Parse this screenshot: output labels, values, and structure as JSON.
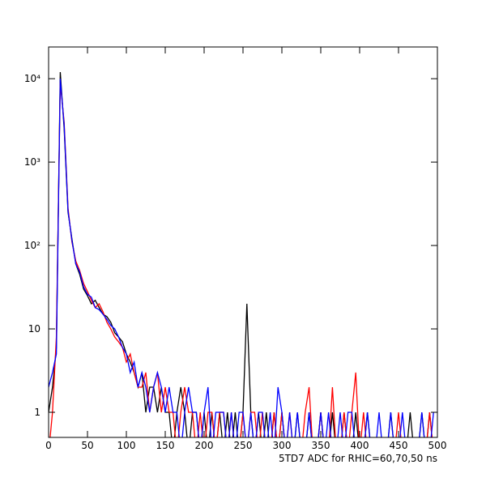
{
  "chart_data": {
    "type": "line",
    "xlabel": "5TD7 ADC for RHIC=60,70,50 ns",
    "xlim": [
      0,
      500
    ],
    "xticks": [
      0,
      50,
      100,
      150,
      200,
      250,
      300,
      350,
      400,
      450,
      500
    ],
    "ylim": [
      0.5,
      24000
    ],
    "log_y": true,
    "yticks": [
      1,
      10,
      {
        "value": 100,
        "label": "10²"
      },
      {
        "value": 1000,
        "label": "10³"
      },
      {
        "value": 10000,
        "label": "10⁴"
      }
    ],
    "x": [
      0,
      5,
      10,
      15,
      20,
      25,
      30,
      35,
      40,
      45,
      50,
      55,
      60,
      65,
      70,
      75,
      80,
      85,
      90,
      95,
      100,
      105,
      110,
      115,
      120,
      125,
      130,
      135,
      140,
      145,
      150,
      155,
      160,
      165,
      170,
      175,
      180,
      185,
      190,
      195,
      200,
      205,
      210,
      215,
      220,
      225,
      230,
      235,
      240,
      245,
      250,
      255,
      260,
      265,
      270,
      275,
      280,
      285,
      290,
      295,
      300,
      305,
      310,
      315,
      320,
      325,
      330,
      335,
      340,
      345,
      350,
      355,
      360,
      365,
      370,
      375,
      380,
      385,
      390,
      395,
      400,
      405,
      410,
      415,
      420,
      425,
      430,
      435,
      440,
      445,
      450,
      455,
      460,
      465,
      470,
      475,
      480,
      485,
      490,
      495
    ],
    "series": [
      {
        "color": "#000000",
        "values": [
          1,
          2,
          6,
          12000,
          2500,
          250,
          120,
          60,
          45,
          30,
          25,
          20,
          22,
          18,
          15,
          14,
          12,
          9,
          8,
          7,
          5,
          4,
          3,
          2,
          3,
          1,
          2,
          2,
          1,
          2,
          1,
          1,
          0,
          1,
          2,
          1,
          0,
          1,
          1,
          0,
          1,
          0,
          1,
          0,
          1,
          0,
          1,
          0,
          1,
          0,
          1,
          20,
          1,
          0,
          1,
          0,
          1,
          0,
          1,
          0,
          1,
          0,
          0,
          0,
          1,
          0,
          0,
          1,
          0,
          0,
          1,
          0,
          0,
          1,
          0,
          0,
          1,
          0,
          0,
          1,
          0,
          0,
          1,
          0,
          0,
          0,
          0,
          0,
          1,
          0,
          0,
          0,
          0,
          1,
          0,
          0,
          1,
          0,
          1,
          0
        ]
      },
      {
        "color": "#ff0000",
        "values": [
          0,
          1,
          8,
          9000,
          3000,
          280,
          110,
          65,
          50,
          35,
          28,
          22,
          18,
          20,
          16,
          12,
          10,
          8,
          7,
          6,
          4,
          5,
          3,
          2,
          2,
          3,
          1,
          2,
          3,
          1,
          2,
          1,
          1,
          0,
          1,
          2,
          1,
          1,
          0,
          1,
          0,
          1,
          1,
          0,
          1,
          1,
          0,
          1,
          0,
          0,
          1,
          0,
          1,
          1,
          0,
          1,
          0,
          0,
          1,
          0,
          1,
          0,
          1,
          0,
          0,
          0,
          1,
          2,
          0,
          0,
          1,
          0,
          0,
          2,
          0,
          0,
          1,
          0,
          1,
          3,
          0,
          1,
          0,
          0,
          0,
          0,
          0,
          0,
          0,
          0,
          1,
          0,
          0,
          0,
          0,
          0,
          0,
          0,
          1,
          0
        ]
      },
      {
        "color": "#0000ff",
        "values": [
          2,
          3,
          5,
          10000,
          2800,
          260,
          115,
          60,
          48,
          32,
          26,
          24,
          18,
          17,
          15,
          13,
          11,
          10,
          8,
          6,
          5,
          3,
          4,
          2,
          3,
          2,
          1,
          2,
          3,
          2,
          1,
          2,
          1,
          1,
          0,
          1,
          2,
          1,
          1,
          0,
          1,
          2,
          0,
          1,
          1,
          1,
          0,
          1,
          0,
          1,
          1,
          0,
          1,
          0,
          1,
          1,
          0,
          1,
          0,
          2,
          1,
          0,
          1,
          0,
          1,
          0,
          0,
          1,
          0,
          0,
          1,
          0,
          1,
          0,
          0,
          1,
          0,
          1,
          1,
          0,
          0,
          0,
          1,
          0,
          0,
          1,
          0,
          0,
          1,
          0,
          0,
          1,
          0,
          0,
          0,
          0,
          1,
          0,
          0,
          1
        ]
      }
    ]
  }
}
